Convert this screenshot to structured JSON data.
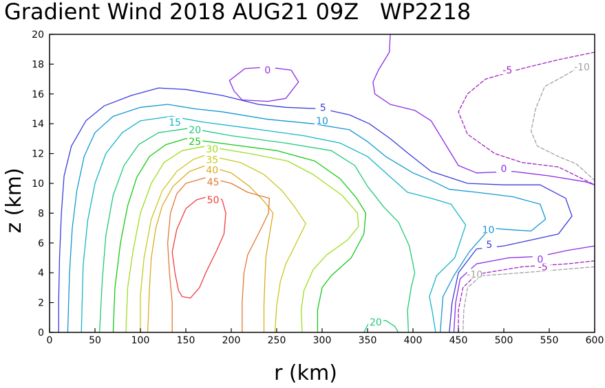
{
  "chart_data": {
    "type": "contour",
    "title": "Gradient Wind 2018 AUG21 09Z   WP2218",
    "xlabel": "r (km)",
    "ylabel": "z (km)",
    "xlim": [
      0,
      600
    ],
    "ylim": [
      0,
      20
    ],
    "xticks": [
      "0",
      "50",
      "100",
      "150",
      "200",
      "250",
      "300",
      "350",
      "400",
      "450",
      "500",
      "550",
      "600"
    ],
    "yticks": [
      "0",
      "2",
      "4",
      "6",
      "8",
      "10",
      "12",
      "14",
      "16",
      "18",
      "20"
    ],
    "contour_interval_ms": 5,
    "negative_contours_dashed": true,
    "contours": [
      {
        "level": -10,
        "color": "#a0a0a0",
        "dashed": true,
        "labels": [
          {
            "text": "-10",
            "x": 586,
            "y": 17.8
          },
          {
            "text": "-10",
            "x": 468,
            "y": 3.9
          }
        ]
      },
      {
        "level": -5,
        "color": "#a020c0",
        "dashed": true,
        "labels": [
          {
            "text": "-5",
            "x": 504,
            "y": 17.6
          },
          {
            "text": "-5",
            "x": 543,
            "y": 4.4
          }
        ]
      },
      {
        "level": 0,
        "color": "#8a2be2",
        "dashed": false,
        "labels": [
          {
            "text": "0",
            "x": 240,
            "y": 17.6
          },
          {
            "text": "0",
            "x": 500,
            "y": 11.0
          },
          {
            "text": "0",
            "x": 540,
            "y": 4.9
          }
        ]
      },
      {
        "level": 5,
        "color": "#3a3adc",
        "dashed": false,
        "labels": [
          {
            "text": "5",
            "x": 301,
            "y": 15.1
          },
          {
            "text": "5",
            "x": 484,
            "y": 5.9
          }
        ]
      },
      {
        "level": 10,
        "color": "#1296d2",
        "dashed": false,
        "labels": [
          {
            "text": "10",
            "x": 300,
            "y": 14.2
          },
          {
            "text": "10",
            "x": 483,
            "y": 6.9
          }
        ]
      },
      {
        "level": 15,
        "color": "#14b4c8",
        "dashed": false,
        "labels": [
          {
            "text": "15",
            "x": 138,
            "y": 14.1
          }
        ]
      },
      {
        "level": 20,
        "color": "#1ec878",
        "dashed": false,
        "labels": [
          {
            "text": "20",
            "x": 160,
            "y": 13.6
          },
          {
            "text": "20",
            "x": 359,
            "y": 0.7
          }
        ]
      },
      {
        "level": 25,
        "color": "#14c814",
        "dashed": false,
        "labels": [
          {
            "text": "25",
            "x": 160,
            "y": 12.8
          }
        ]
      },
      {
        "level": 30,
        "color": "#a0dc1e",
        "dashed": false,
        "labels": [
          {
            "text": "30",
            "x": 179,
            "y": 12.3
          }
        ]
      },
      {
        "level": 35,
        "color": "#c8c81e",
        "dashed": false,
        "labels": [
          {
            "text": "35",
            "x": 179,
            "y": 11.6
          }
        ]
      },
      {
        "level": 40,
        "color": "#dcaa1e",
        "dashed": false,
        "labels": [
          {
            "text": "40",
            "x": 179,
            "y": 10.9
          }
        ]
      },
      {
        "level": 45,
        "color": "#e17832",
        "dashed": false,
        "labels": [
          {
            "text": "45",
            "x": 180,
            "y": 10.1
          }
        ]
      },
      {
        "level": 50,
        "color": "#f03c3c",
        "dashed": false,
        "labels": [
          {
            "text": "50",
            "x": 180,
            "y": 8.9
          }
        ]
      }
    ]
  }
}
